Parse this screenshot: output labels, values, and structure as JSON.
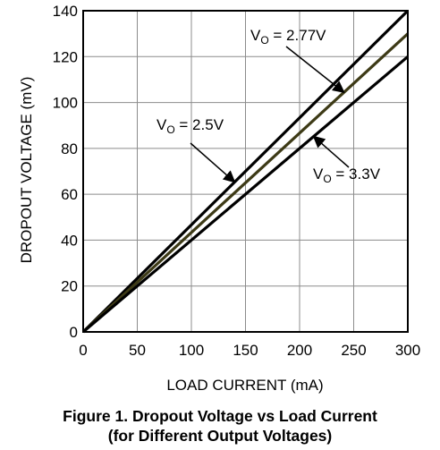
{
  "chart_data": {
    "type": "line",
    "xlabel": "LOAD CURRENT (mA)",
    "ylabel": "DROPOUT VOLTAGE (mV)",
    "xlim": [
      0,
      300
    ],
    "ylim": [
      0,
      140
    ],
    "x_ticks": [
      0,
      50,
      100,
      150,
      200,
      250,
      300
    ],
    "y_ticks": [
      0,
      20,
      40,
      60,
      80,
      100,
      120,
      140
    ],
    "grid": true,
    "series": [
      {
        "name": "VO = 2.5V",
        "color": "#000000",
        "x": [
          0,
          300
        ],
        "y": [
          0,
          140
        ]
      },
      {
        "name": "VO = 2.77V",
        "color": "#3d3a16",
        "x": [
          0,
          300
        ],
        "y": [
          0,
          130
        ]
      },
      {
        "name": "VO = 3.3V",
        "color": "#000000",
        "x": [
          0,
          300
        ],
        "y": [
          0,
          120
        ]
      }
    ],
    "annotations": [
      {
        "label_main": "V",
        "label_sub": "O",
        "label_rest": " = 2.77V",
        "series": 1
      },
      {
        "label_main": "V",
        "label_sub": "O",
        "label_rest": " = 2.5V",
        "series": 0
      },
      {
        "label_main": "V",
        "label_sub": "O",
        "label_rest": " = 3.3V",
        "series": 2
      }
    ]
  },
  "caption": {
    "line1": "Figure 1. Dropout Voltage vs Load Current",
    "line2": "(for Different Output Voltages)"
  }
}
